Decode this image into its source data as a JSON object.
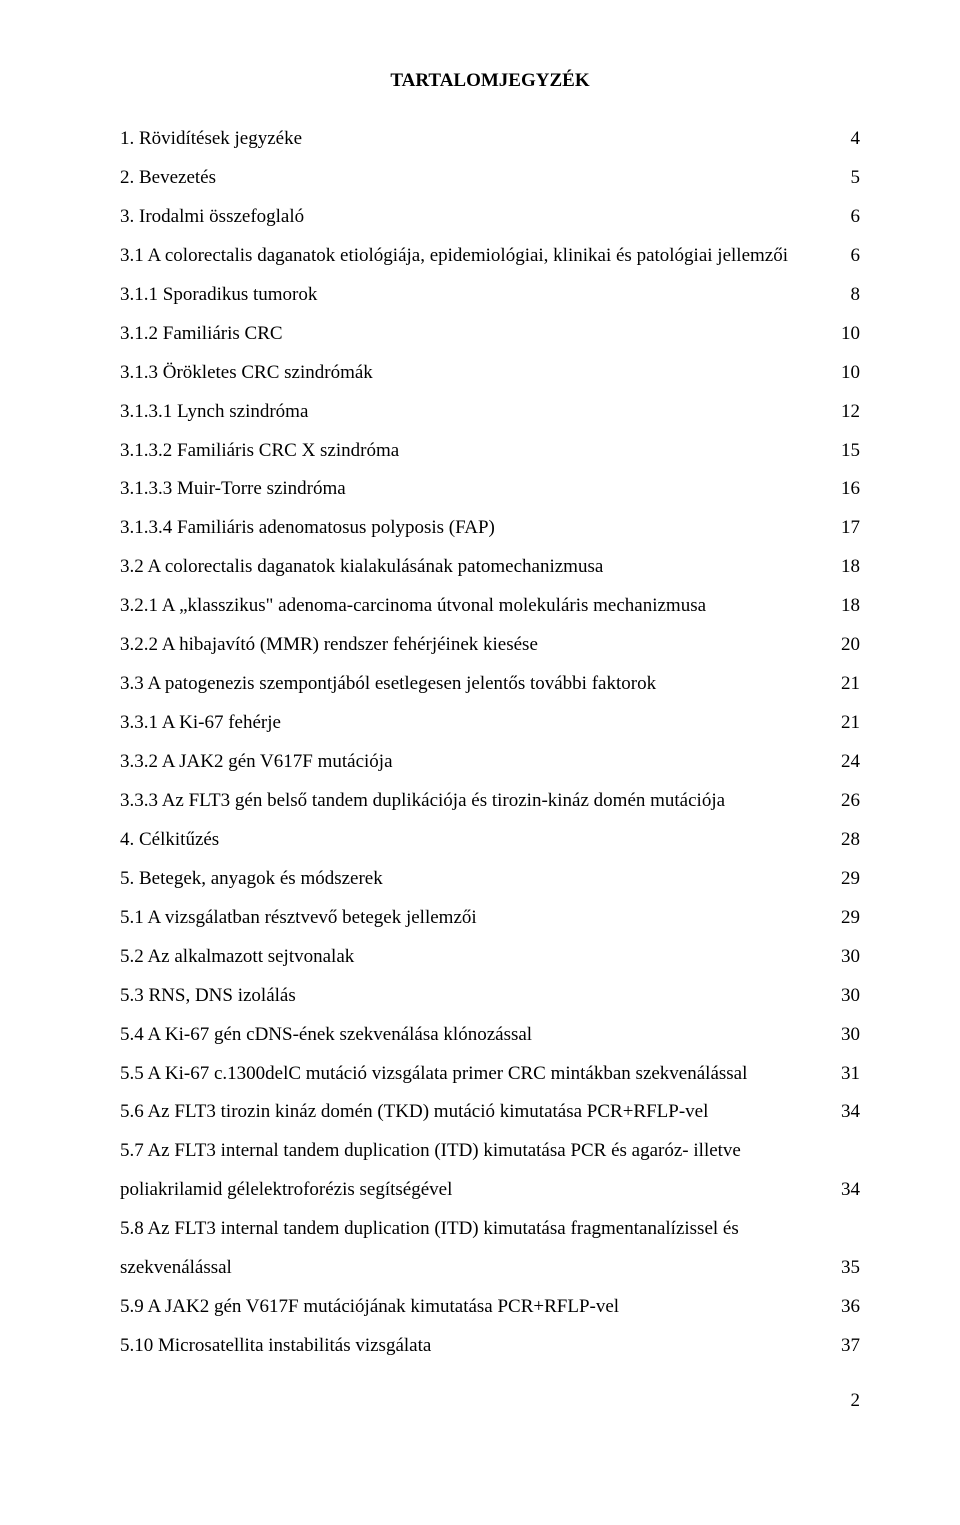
{
  "title": "TARTALOMJEGYZÉK",
  "toc": [
    {
      "text": "1. Rövidítések jegyzéke",
      "page": "4"
    },
    {
      "text": "2. Bevezetés",
      "page": "5"
    },
    {
      "text": "3. Irodalmi összefoglaló",
      "page": "6"
    },
    {
      "text": "3.1 A colorectalis daganatok etiológiája, epidemiológiai, klinikai és patológiai jellemzői",
      "page": "6"
    },
    {
      "text": "3.1.1 Sporadikus tumorok",
      "page": "8"
    },
    {
      "text": "3.1.2 Familiáris CRC",
      "page": "10"
    },
    {
      "text": "3.1.3 Örökletes CRC szindrómák",
      "page": "10"
    },
    {
      "text": "3.1.3.1 Lynch szindróma",
      "page": "12"
    },
    {
      "text": "3.1.3.2 Familiáris CRC X szindróma",
      "page": "15"
    },
    {
      "text": "3.1.3.3 Muir-Torre szindróma",
      "page": "16"
    },
    {
      "text": "3.1.3.4 Familiáris adenomatosus polyposis (FAP)",
      "page": "17"
    },
    {
      "text": "3.2 A colorectalis daganatok kialakulásának patomechanizmusa",
      "page": "18"
    },
    {
      "text": "3.2.1 A „klasszikus\" adenoma-carcinoma útvonal molekuláris mechanizmusa",
      "page": "18"
    },
    {
      "text": "3.2.2 A hibajavító (MMR) rendszer fehérjéinek kiesése",
      "page": "20"
    },
    {
      "text": "3.3 A patogenezis szempontjából esetlegesen jelentős további faktorok",
      "page": "21"
    },
    {
      "text": "3.3.1 A Ki-67 fehérje",
      "page": "21"
    },
    {
      "text": "3.3.2 A JAK2 gén V617F mutációja",
      "page": "24"
    },
    {
      "text": "3.3.3 Az FLT3 gén belső tandem duplikációja és tirozin-kináz domén mutációja",
      "page": "26"
    },
    {
      "text": "4. Célkitűzés",
      "page": "28"
    },
    {
      "text": "5. Betegek, anyagok és módszerek",
      "page": "29"
    },
    {
      "text": "5.1 A vizsgálatban résztvevő betegek jellemzői",
      "page": "29"
    },
    {
      "text": "5.2 Az alkalmazott sejtvonalak",
      "page": "30"
    },
    {
      "text": "5.3 RNS, DNS izolálás",
      "page": "30"
    },
    {
      "text": "5.4 A Ki-67 gén cDNS-ének szekvenálása klónozással",
      "page": "30"
    },
    {
      "text": "5.5 A Ki-67 c.1300delC mutáció vizsgálata primer CRC mintákban szekvenálással",
      "page": "31"
    },
    {
      "text": "5.6 Az FLT3 tirozin kináz domén (TKD) mutáció kimutatása PCR+RFLP-vel",
      "page": "34"
    },
    {
      "text": "5.7 Az FLT3 internal tandem duplication (ITD) kimutatása PCR és agaróz- illetve",
      "cont": "poliakrilamid gélelektroforézis segítségével",
      "page": "34"
    },
    {
      "text": "5.8 Az FLT3 internal tandem duplication (ITD) kimutatása fragmentanalízissel és",
      "cont": "szekvenálással",
      "page": "35"
    },
    {
      "text": "5.9 A JAK2 gén V617F mutációjának kimutatása PCR+RFLP-vel",
      "page": "36"
    },
    {
      "text": "5.10 Microsatellita instabilitás vizsgálata",
      "page": "37"
    }
  ],
  "pageNumber": "2"
}
